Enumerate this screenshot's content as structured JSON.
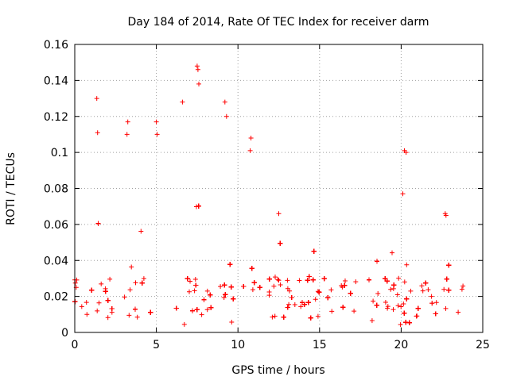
{
  "chart_data": {
    "type": "scatter",
    "title": "Day 184 of 2014, Rate Of TEC Index for receiver darm",
    "xlabel": "GPS time / hours",
    "ylabel": "ROTI / TECUs",
    "xlim": [
      0,
      25
    ],
    "ylim": [
      0,
      0.16
    ],
    "xticks": [
      0,
      5,
      10,
      15,
      20,
      25
    ],
    "xtick_labels": [
      "0",
      "5",
      "10",
      "15",
      "20",
      "25"
    ],
    "yticks": [
      0,
      0.02,
      0.04,
      0.06,
      0.08,
      0.1,
      0.12,
      0.14,
      0.16
    ],
    "ytick_labels": [
      "0",
      "0.02",
      "0.04",
      "0.06",
      "0.08",
      "0.1",
      "0.12",
      "0.14",
      "0.16"
    ],
    "grid": true,
    "grid_style": "dotted",
    "marker": "plus",
    "marker_color": "#ff0000",
    "data_gap_hours": [
      5.3,
      6.2
    ],
    "notable_points": [
      {
        "x": 1.35,
        "y": 0.13
      },
      {
        "x": 1.4,
        "y": 0.111
      },
      {
        "x": 3.25,
        "y": 0.117
      },
      {
        "x": 3.2,
        "y": 0.11
      },
      {
        "x": 5.0,
        "y": 0.117
      },
      {
        "x": 5.05,
        "y": 0.11
      },
      {
        "x": 6.6,
        "y": 0.128
      },
      {
        "x": 7.5,
        "y": 0.148
      },
      {
        "x": 7.55,
        "y": 0.146
      },
      {
        "x": 7.6,
        "y": 0.138
      },
      {
        "x": 9.2,
        "y": 0.128
      },
      {
        "x": 9.3,
        "y": 0.12
      },
      {
        "x": 10.8,
        "y": 0.108
      },
      {
        "x": 10.75,
        "y": 0.101
      },
      {
        "x": 12.5,
        "y": 0.066
      },
      {
        "x": 20.2,
        "y": 0.101
      },
      {
        "x": 20.3,
        "y": 0.1
      },
      {
        "x": 20.1,
        "y": 0.077
      },
      {
        "x": 22.7,
        "y": 0.066
      },
      {
        "x": 22.75,
        "y": 0.065
      }
    ]
  }
}
